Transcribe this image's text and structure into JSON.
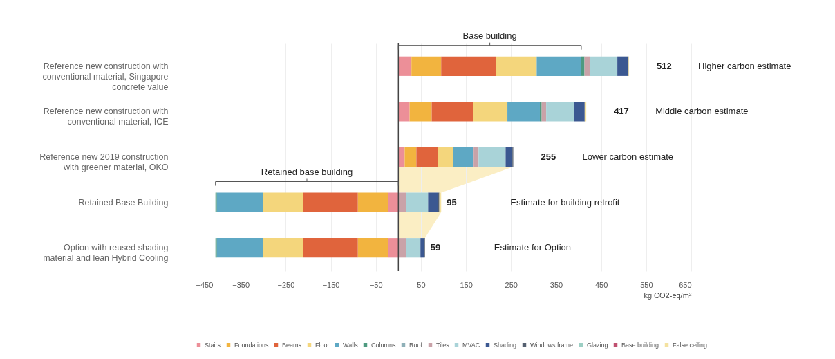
{
  "chart_data": {
    "type": "bar",
    "orientation": "horizontal",
    "stacked": true,
    "categories": [
      "Reference new construction with conventional material, Singapore concrete value",
      "Reference new construction with conventional material, ICE",
      "Reference new 2019 construction with greener material, OKO",
      "Retained Base Building",
      "Option with reused shading material and lean Hybrid Cooling"
    ],
    "series": [
      {
        "name": "Stairs",
        "color": "#ec8f98",
        "values": [
          29,
          25,
          14,
          -23,
          -23
        ]
      },
      {
        "name": "Foundations",
        "color": "#f2b43f",
        "values": [
          66,
          49,
          26,
          -67,
          -67
        ]
      },
      {
        "name": "Beams",
        "color": "#e0643c",
        "values": [
          121,
          92,
          47,
          -122,
          -122
        ]
      },
      {
        "name": "Floor",
        "color": "#f4d67c",
        "values": [
          91,
          76,
          34,
          -89,
          -89
        ]
      },
      {
        "name": "Walls",
        "color": "#5ea8c4",
        "values": [
          98,
          72,
          46,
          -102,
          -102
        ]
      },
      {
        "name": "Columns",
        "color": "#4e9a80",
        "values": [
          8,
          4,
          null,
          -3,
          -3
        ]
      },
      {
        "name": "Roof",
        "color": "#8fb0b8",
        "values": [
          null,
          null,
          null,
          null,
          null
        ]
      },
      {
        "name": "Tiles",
        "color": "#c9a2a8",
        "values": [
          12,
          10,
          11,
          17,
          17
        ]
      },
      {
        "name": "MVAC",
        "color": "#a9d3d8",
        "values": [
          61,
          62,
          60,
          49,
          32
        ]
      },
      {
        "name": "Shading",
        "color": "#3b5891",
        "values": [
          23,
          23,
          15,
          21,
          8
        ]
      },
      {
        "name": "Windows frame",
        "color": "#556070",
        "values": [
          2,
          2,
          2,
          4,
          2
        ]
      },
      {
        "name": "Glazing",
        "color": "#9ccfc4",
        "values": [
          null,
          null,
          null,
          null,
          null
        ]
      },
      {
        "name": "Base building",
        "color": "#c05070",
        "values": [
          null,
          null,
          null,
          null,
          null
        ]
      },
      {
        "name": "False ceiling",
        "color": "#f4e2a0",
        "values": [
          1,
          2,
          null,
          4,
          null
        ]
      }
    ],
    "totals": [
      "512",
      "417",
      "255",
      null,
      null
    ],
    "xlim": [
      -450,
      650
    ],
    "xticks": [
      -450,
      -350,
      -250,
      -150,
      -50,
      50,
      150,
      250,
      350,
      450,
      550,
      650
    ],
    "xlabel": "kg CO2-eq/m²",
    "ref_lines": [
      {
        "axis": "x",
        "value": 0,
        "label": null,
        "color": "#444444"
      }
    ],
    "annotations": [
      "Base building",
      "Retained base building",
      "Higher carbon estimate",
      "Middle carbon estimate",
      "Lower carbon estimate",
      "Estimate for building retrofit",
      "Estimate for Option",
      {
        "text": "95",
        "x": 95,
        "y": "Retained Base Building"
      },
      {
        "text": "59",
        "x": 59,
        "y": "Option with reused shading material and lean Hybrid Cooling"
      }
    ],
    "grid": "x",
    "legend": "bottom"
  }
}
